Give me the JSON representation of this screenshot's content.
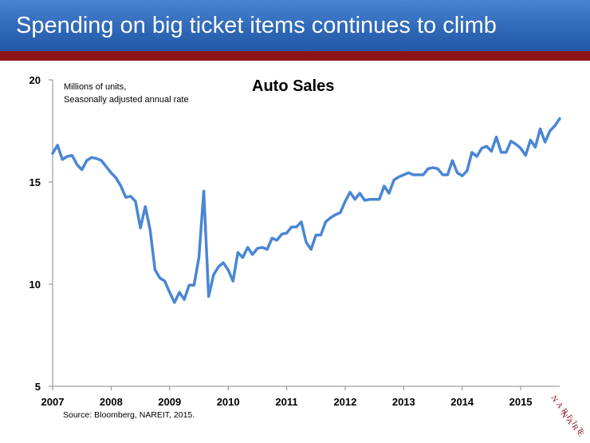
{
  "header": {
    "title": "Spending on big ticket items continues to climb",
    "title_bar_color": "#2f69b8",
    "accent_bar_color": "#8f1218"
  },
  "chart_data": {
    "type": "line",
    "title": "Auto Sales",
    "unit_note": [
      "Millions of units,",
      "Seasonally adjusted annual rate"
    ],
    "x_ticks": [
      "2007",
      "2008",
      "2009",
      "2010",
      "2011",
      "2012",
      "2013",
      "2014",
      "2015"
    ],
    "y_ticks": [
      "5",
      "10",
      "15",
      "20"
    ],
    "xlim": [
      "2007-01",
      "2015-09"
    ],
    "ylim": [
      5,
      20
    ],
    "grid": false,
    "legend": "none",
    "line_color": "#4a86d4",
    "series": [
      {
        "x": [
          "2007-01",
          "2007-02",
          "2007-03",
          "2007-04",
          "2007-05",
          "2007-06",
          "2007-07",
          "2007-08",
          "2007-09",
          "2007-10",
          "2007-11",
          "2007-12",
          "2008-01",
          "2008-02",
          "2008-03",
          "2008-04",
          "2008-05",
          "2008-06",
          "2008-07",
          "2008-08",
          "2008-09",
          "2008-10",
          "2008-11",
          "2008-12",
          "2009-01",
          "2009-02",
          "2009-03",
          "2009-04",
          "2009-05",
          "2009-06",
          "2009-07",
          "2009-08",
          "2009-09",
          "2009-10",
          "2009-11",
          "2009-12",
          "2010-01",
          "2010-02",
          "2010-03",
          "2010-04",
          "2010-05",
          "2010-06",
          "2010-07",
          "2010-08",
          "2010-09",
          "2010-10",
          "2010-11",
          "2010-12",
          "2011-01",
          "2011-02",
          "2011-03",
          "2011-04",
          "2011-05",
          "2011-06",
          "2011-07",
          "2011-08",
          "2011-09",
          "2011-10",
          "2011-11",
          "2011-12",
          "2012-01",
          "2012-02",
          "2012-03",
          "2012-04",
          "2012-05",
          "2012-06",
          "2012-07",
          "2012-08",
          "2012-09",
          "2012-10",
          "2012-11",
          "2012-12",
          "2013-01",
          "2013-02",
          "2013-03",
          "2013-04",
          "2013-05",
          "2013-06",
          "2013-07",
          "2013-08",
          "2013-09",
          "2013-10",
          "2013-11",
          "2013-12",
          "2014-01",
          "2014-02",
          "2014-03",
          "2014-04",
          "2014-05",
          "2014-06",
          "2014-07",
          "2014-08",
          "2014-09",
          "2014-10",
          "2014-11",
          "2014-12",
          "2015-01",
          "2015-02",
          "2015-03",
          "2015-04",
          "2015-05",
          "2015-06",
          "2015-07",
          "2015-08",
          "2015-09"
        ],
        "values": [
          16.4,
          16.8,
          16.1,
          16.25,
          16.3,
          15.85,
          15.6,
          16.05,
          16.2,
          16.15,
          16.05,
          15.75,
          15.45,
          15.2,
          14.8,
          14.25,
          14.3,
          14.05,
          12.75,
          13.8,
          12.65,
          10.7,
          10.3,
          10.15,
          9.6,
          9.1,
          9.6,
          9.25,
          9.95,
          9.95,
          11.3,
          14.55,
          9.4,
          10.45,
          10.85,
          11.05,
          10.7,
          10.15,
          11.55,
          11.3,
          11.8,
          11.45,
          11.75,
          11.8,
          11.7,
          12.25,
          12.15,
          12.45,
          12.5,
          12.8,
          12.8,
          13.05,
          12.05,
          11.7,
          12.4,
          12.4,
          13.05,
          13.25,
          13.4,
          13.5,
          14.05,
          14.5,
          14.15,
          14.45,
          14.1,
          14.15,
          14.15,
          14.15,
          14.8,
          14.45,
          15.1,
          15.25,
          15.35,
          15.45,
          15.35,
          15.35,
          15.35,
          15.65,
          15.7,
          15.65,
          15.35,
          15.35,
          16.05,
          15.45,
          15.3,
          15.55,
          16.45,
          16.25,
          16.65,
          16.75,
          16.5,
          17.2,
          16.45,
          16.45,
          17.0,
          16.85,
          16.65,
          16.3,
          17.05,
          16.7,
          17.6,
          16.95,
          17.5,
          17.75,
          18.1
        ]
      }
    ]
  },
  "source": "Source: Bloomberg,  NAREIT, 2015.",
  "logo": {
    "text": "NAREIT",
    "color": "#8f1218"
  }
}
